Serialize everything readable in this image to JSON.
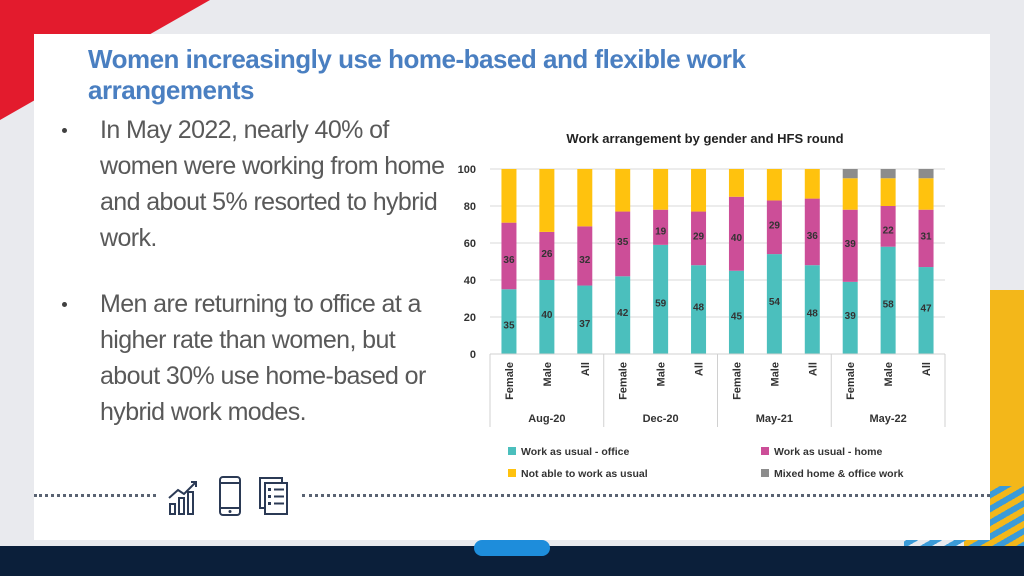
{
  "slide": {
    "title": "Women increasingly use home-based and flexible work arrangements",
    "bullets": [
      "In May 2022, nearly 40% of women were  working from home and about 5% resorted to hybrid work.",
      "Men are returning to office at a higher rate than women, but about  30% use home-based or hybrid work modes."
    ],
    "icons": [
      "growth-chart-icon",
      "smartphone-icon",
      "documents-checklist-icon"
    ]
  },
  "chart_data": {
    "type": "bar",
    "stacked": true,
    "percent_stacked": true,
    "title": "Work arrangement by gender and HFS round",
    "xlabel": "",
    "ylabel": "",
    "ylim": [
      0,
      100
    ],
    "yticks": [
      0,
      20,
      40,
      60,
      80,
      100
    ],
    "grid": true,
    "legend_position": "bottom",
    "groups": [
      {
        "label": "Aug-20",
        "categories": [
          "Female",
          "Male",
          "All"
        ]
      },
      {
        "label": "Dec-20",
        "categories": [
          "Female",
          "Male",
          "All"
        ]
      },
      {
        "label": "May-21",
        "categories": [
          "Female",
          "Male",
          "All"
        ]
      },
      {
        "label": "May-22",
        "categories": [
          "Female",
          "Male",
          "All"
        ]
      }
    ],
    "series": [
      {
        "name": "Work as usual - office",
        "color": "#4bbfbd",
        "values": [
          35,
          40,
          37,
          42,
          59,
          48,
          45,
          54,
          48,
          39,
          58,
          47
        ],
        "labels_shown": true
      },
      {
        "name": "Work as usual - home",
        "color": "#cc4e98",
        "values": [
          36,
          26,
          32,
          35,
          19,
          29,
          40,
          29,
          36,
          39,
          22,
          31
        ],
        "labels_shown": true
      },
      {
        "name": "Not able to work as usual",
        "color": "#ffc20e",
        "values": [
          29,
          34,
          31,
          23,
          22,
          23,
          15,
          17,
          16,
          17,
          15,
          17
        ],
        "labels_shown": false
      },
      {
        "name": "Mixed home & office work",
        "color": "#8c8c8c",
        "values": [
          0,
          0,
          0,
          0,
          0,
          0,
          0,
          0,
          0,
          5,
          5,
          5
        ],
        "labels_shown": false
      }
    ]
  }
}
